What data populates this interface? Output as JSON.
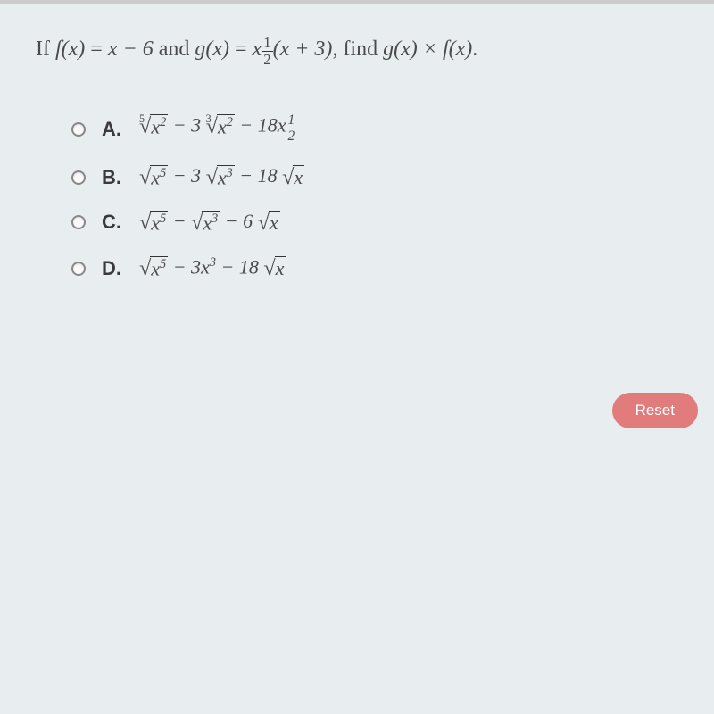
{
  "question": {
    "prefix": "If",
    "f_expr_lhs": "f(x)",
    "equals": " = ",
    "f_expr_rhs": "x − 6",
    "and": " and ",
    "g_expr_lhs": "g(x)",
    "g_expr_rhs_base": "x",
    "g_exp_num": "1",
    "g_exp_den": "2",
    "g_expr_rest": "(x + 3)",
    "find": ", find ",
    "find_expr": "g(x) × f(x)",
    "period": "."
  },
  "options": [
    {
      "label": "A.",
      "expr_parts": {
        "type": "A",
        "root1_index": "5",
        "root1_radicand_base": "x",
        "root1_radicand_exp": "2",
        "term2_coeff": " − 3",
        "root2_index": "3",
        "root2_radicand_base": "x",
        "root2_radicand_exp": "2",
        "term3_coeff": " − 18",
        "term3_base": "x",
        "term3_exp_num": "1",
        "term3_exp_den": "2"
      }
    },
    {
      "label": "B.",
      "expr_parts": {
        "type": "B",
        "root1_radicand_base": "x",
        "root1_radicand_exp": "5",
        "term2_coeff": " − 3",
        "root2_radicand_base": "x",
        "root2_radicand_exp": "3",
        "term3_coeff": " − 18",
        "root3_radicand": "x"
      }
    },
    {
      "label": "C.",
      "expr_parts": {
        "type": "C",
        "root1_radicand_base": "x",
        "root1_radicand_exp": "5",
        "term2_coeff": " − ",
        "root2_radicand_base": "x",
        "root2_radicand_exp": "3",
        "term3_coeff": " − 6",
        "root3_radicand": "x"
      }
    },
    {
      "label": "D.",
      "expr_parts": {
        "type": "D",
        "root1_radicand_base": "x",
        "root1_radicand_exp": "5",
        "term2_coeff": " − 3",
        "term2_base": "x",
        "term2_exp": "3",
        "term3_coeff": " − 18",
        "root3_radicand": "x"
      }
    }
  ],
  "reset_button": "Reset",
  "colors": {
    "background": "#e8edef",
    "text": "#4a4a4a",
    "reset_bg": "#e27b7b",
    "reset_text": "#ffffff"
  }
}
